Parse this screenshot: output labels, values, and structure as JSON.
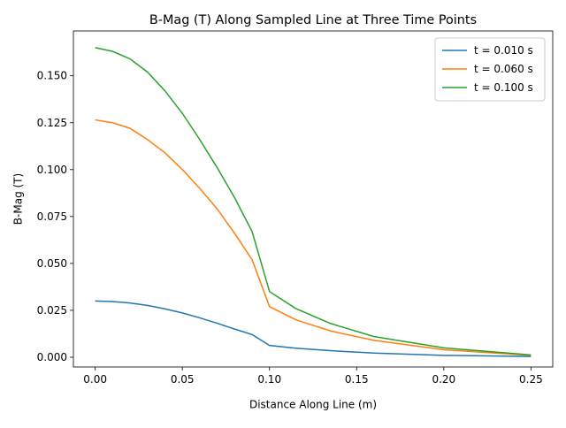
{
  "chart_data": {
    "type": "line",
    "title": "B-Mag (T) Along Sampled Line at Three Time Points",
    "x_label": "Distance Along Line (m)",
    "y_label": "B-Mag (T)",
    "x": [
      0,
      0.01,
      0.02,
      0.03,
      0.04,
      0.05,
      0.06,
      0.07,
      0.08,
      0.09,
      0.1,
      0.115,
      0.135,
      0.16,
      0.2,
      0.25
    ],
    "series": [
      {
        "name": "t = 0.010 s",
        "color": "#1f77b4",
        "values": [
          0.03,
          0.0297,
          0.0289,
          0.0276,
          0.0258,
          0.0236,
          0.021,
          0.0181,
          0.015,
          0.0121,
          0.0063,
          0.0048,
          0.0035,
          0.0022,
          0.001,
          0.0004
        ]
      },
      {
        "name": "t = 0.060 s",
        "color": "#ff7f0e",
        "values": [
          0.1265,
          0.125,
          0.122,
          0.116,
          0.109,
          0.1,
          0.09,
          0.079,
          0.066,
          0.052,
          0.027,
          0.02,
          0.014,
          0.009,
          0.004,
          0.001
        ]
      },
      {
        "name": "t = 0.100 s",
        "color": "#2ca02c",
        "values": [
          0.165,
          0.163,
          0.159,
          0.152,
          0.142,
          0.13,
          0.116,
          0.101,
          0.085,
          0.067,
          0.035,
          0.026,
          0.018,
          0.011,
          0.005,
          0.0012
        ]
      }
    ],
    "xlim": [
      -0.0125,
      0.2625
    ],
    "ylim": [
      -0.0052,
      0.1739
    ],
    "xticks": [
      {
        "value": 0,
        "label": "0.00"
      },
      {
        "value": 0.05,
        "label": "0.05"
      },
      {
        "value": 0.1,
        "label": "0.10"
      },
      {
        "value": 0.15,
        "label": "0.15"
      },
      {
        "value": 0.2,
        "label": "0.20"
      },
      {
        "value": 0.25,
        "label": "0.25"
      }
    ],
    "yticks": [
      {
        "value": 0,
        "label": "0.000"
      },
      {
        "value": 0.025,
        "label": "0.025"
      },
      {
        "value": 0.05,
        "label": "0.050"
      },
      {
        "value": 0.075,
        "label": "0.075"
      },
      {
        "value": 0.1,
        "label": "0.100"
      },
      {
        "value": 0.125,
        "label": "0.125"
      },
      {
        "value": 0.15,
        "label": "0.150"
      }
    ],
    "legend": "upper right",
    "grid": false
  }
}
